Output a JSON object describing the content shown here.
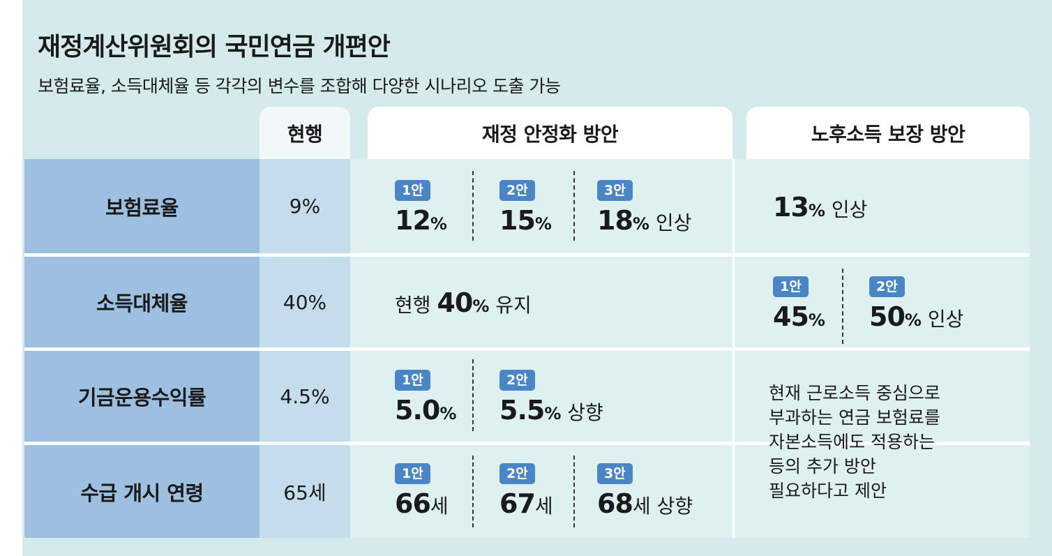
{
  "title": "재정계산위원회의 국민연금 개편안",
  "subtitle": "보험료율, 소득대체율 등 각각의 변수를 조합해 다양한 시나리오 도출 가능",
  "headers": {
    "current": "현행",
    "fiscal": "재정 안정화 방안",
    "income": "노후소득 보장 방안"
  },
  "rows": {
    "premium": {
      "label": "보험료율",
      "current": "9%",
      "fiscal": [
        {
          "badge": "1안",
          "num": "12",
          "unit": "%",
          "suffix": ""
        },
        {
          "badge": "2안",
          "num": "15",
          "unit": "%",
          "suffix": ""
        },
        {
          "badge": "3안",
          "num": "18",
          "unit": "%",
          "suffix": " 인상"
        }
      ],
      "income": {
        "num": "13",
        "unit": "%",
        "suffix": " 인상"
      }
    },
    "replacement": {
      "label": "소득대체율",
      "current": "40%",
      "fiscal": {
        "prefix": "현행 ",
        "num": "40",
        "unit": "%",
        "suffix": " 유지"
      },
      "income": [
        {
          "badge": "1안",
          "num": "45",
          "unit": "%",
          "suffix": ""
        },
        {
          "badge": "2안",
          "num": "50",
          "unit": "%",
          "suffix": " 인상"
        }
      ]
    },
    "returns": {
      "label": "기금운용수익률",
      "current": "4.5%",
      "fiscal": [
        {
          "badge": "1안",
          "num": "5.0",
          "unit": "%",
          "suffix": ""
        },
        {
          "badge": "2안",
          "num": "5.5",
          "unit": "%",
          "suffix": " 상향"
        }
      ],
      "income_note": [
        "현재 근로소득 중심으로",
        "부과하는 연금 보험료를",
        "자본소득에도 적용하는",
        "등의 추가 방안",
        "필요하다고 제안"
      ]
    },
    "age": {
      "label": "수급 개시 연령",
      "current": "65세",
      "fiscal": [
        {
          "badge": "1안",
          "num": "66",
          "unit": "세",
          "suffix": ""
        },
        {
          "badge": "2안",
          "num": "67",
          "unit": "세",
          "suffix": ""
        },
        {
          "badge": "3안",
          "num": "68",
          "unit": "세",
          "suffix": " 상향"
        }
      ]
    }
  }
}
